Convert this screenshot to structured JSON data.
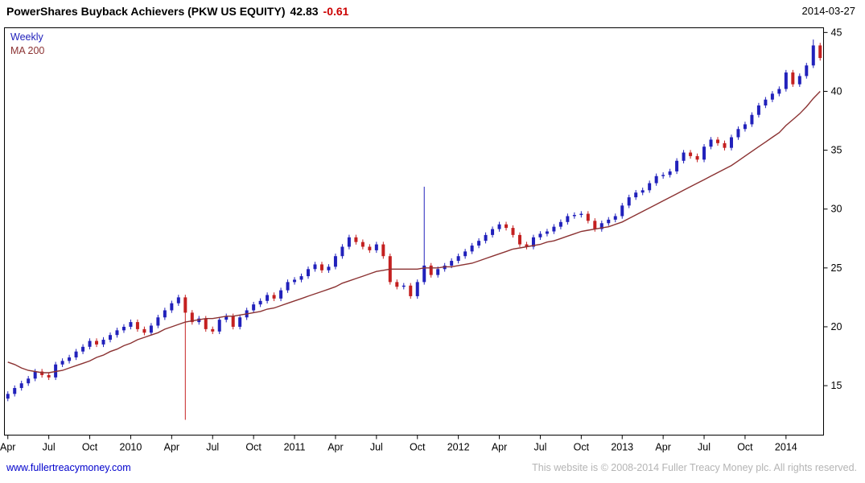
{
  "header": {
    "title": "PowerShares Buyback Achievers (PKW US EQUITY)",
    "last_price": "42.83",
    "change": "-0.61",
    "date": "2014-03-27"
  },
  "legend": {
    "series_label": "Weekly",
    "ma_label": "MA 200"
  },
  "footer": {
    "link": "www.fullertreacymoney.com",
    "copyright": "This website is © 2008-2014 Fuller Treacy Money plc. All rights reserved."
  },
  "colors": {
    "up_candle": "#2121bb",
    "down_candle": "#c42020",
    "ma_line": "#8b3232",
    "axis": "#000000",
    "change_text": "#cc0000",
    "link_text": "#0000cc",
    "copyright_text": "#b4b4b4"
  },
  "chart_data": {
    "type": "candlestick",
    "title": "PowerShares Buyback Achievers (PKW US EQUITY)",
    "interval": "weekly, approx. biweekly sampling Apr 2009 - Mar 2014",
    "grid": false,
    "legend_position": "top-left",
    "ylim": [
      10.8,
      45.4
    ],
    "yticks": [
      15,
      20,
      25,
      30,
      35,
      40,
      45
    ],
    "xticks": [
      {
        "i": 0,
        "label": "Apr"
      },
      {
        "i": 6,
        "label": "Jul"
      },
      {
        "i": 12,
        "label": "Oct"
      },
      {
        "i": 18,
        "label": "2010"
      },
      {
        "i": 24,
        "label": "Apr"
      },
      {
        "i": 30,
        "label": "Jul"
      },
      {
        "i": 36,
        "label": "Oct"
      },
      {
        "i": 42,
        "label": "2011"
      },
      {
        "i": 48,
        "label": "Apr"
      },
      {
        "i": 54,
        "label": "Jul"
      },
      {
        "i": 60,
        "label": "Oct"
      },
      {
        "i": 66,
        "label": "2012"
      },
      {
        "i": 72,
        "label": "Apr"
      },
      {
        "i": 78,
        "label": "Jul"
      },
      {
        "i": 84,
        "label": "Oct"
      },
      {
        "i": 90,
        "label": "2013"
      },
      {
        "i": 96,
        "label": "Apr"
      },
      {
        "i": 102,
        "label": "Jul"
      },
      {
        "i": 108,
        "label": "Oct"
      },
      {
        "i": 114,
        "label": "2014"
      }
    ],
    "closes": [
      14.3,
      14.8,
      15.2,
      15.6,
      16.2,
      15.9,
      15.7,
      16.8,
      17.1,
      17.4,
      17.9,
      18.3,
      18.8,
      18.5,
      18.9,
      19.3,
      19.7,
      20.0,
      20.4,
      19.8,
      19.5,
      20.1,
      20.8,
      21.4,
      22.0,
      22.5,
      21.2,
      20.4,
      20.7,
      19.8,
      19.6,
      20.6,
      20.9,
      20.0,
      20.8,
      21.4,
      21.9,
      22.2,
      22.7,
      22.4,
      23.1,
      23.8,
      24.0,
      24.3,
      24.9,
      25.3,
      24.8,
      25.1,
      26.0,
      26.8,
      27.6,
      27.2,
      26.8,
      26.5,
      27.0,
      26.0,
      23.8,
      23.4,
      23.5,
      22.6,
      23.8,
      25.2,
      24.4,
      24.9,
      25.2,
      25.6,
      26.0,
      26.4,
      26.9,
      27.3,
      27.8,
      28.3,
      28.7,
      28.4,
      27.8,
      27.0,
      26.8,
      27.6,
      27.9,
      28.1,
      28.5,
      28.9,
      29.4,
      29.5,
      29.6,
      29.0,
      28.3,
      28.8,
      29.1,
      29.4,
      30.3,
      31.0,
      31.4,
      31.6,
      32.2,
      32.8,
      32.9,
      33.2,
      34.1,
      34.8,
      34.5,
      34.2,
      35.3,
      35.9,
      35.6,
      35.2,
      36.1,
      36.8,
      37.2,
      38.0,
      38.8,
      39.3,
      39.8,
      40.2,
      41.6,
      40.6,
      41.3,
      42.2,
      43.9,
      42.83
    ],
    "ma200": [
      17.0,
      16.8,
      16.5,
      16.3,
      16.2,
      16.1,
      16.1,
      16.2,
      16.3,
      16.5,
      16.7,
      16.9,
      17.1,
      17.4,
      17.6,
      17.9,
      18.1,
      18.4,
      18.6,
      18.9,
      19.1,
      19.3,
      19.5,
      19.8,
      20.0,
      20.2,
      20.4,
      20.5,
      20.6,
      20.7,
      20.7,
      20.8,
      20.9,
      20.9,
      21.0,
      21.1,
      21.2,
      21.3,
      21.5,
      21.6,
      21.8,
      22.0,
      22.2,
      22.4,
      22.6,
      22.8,
      23.0,
      23.2,
      23.4,
      23.7,
      23.9,
      24.1,
      24.3,
      24.5,
      24.7,
      24.8,
      24.9,
      24.9,
      24.9,
      24.9,
      24.9,
      25.0,
      25.0,
      25.0,
      25.1,
      25.1,
      25.2,
      25.3,
      25.4,
      25.6,
      25.8,
      26.0,
      26.2,
      26.4,
      26.6,
      26.7,
      26.8,
      26.9,
      27.0,
      27.2,
      27.3,
      27.5,
      27.7,
      27.9,
      28.1,
      28.2,
      28.3,
      28.4,
      28.5,
      28.7,
      28.9,
      29.2,
      29.5,
      29.8,
      30.1,
      30.4,
      30.7,
      31.0,
      31.3,
      31.6,
      31.9,
      32.2,
      32.5,
      32.8,
      33.1,
      33.4,
      33.7,
      34.1,
      34.5,
      34.9,
      35.3,
      35.7,
      36.1,
      36.5,
      37.1,
      37.6,
      38.1,
      38.7,
      39.4,
      40.0
    ],
    "wick_overrides": {
      "26": {
        "low": 12.1
      },
      "61": {
        "high": 31.9
      },
      "118": {
        "high": 44.4
      }
    },
    "last_close": 42.83,
    "last_change": -0.61
  }
}
